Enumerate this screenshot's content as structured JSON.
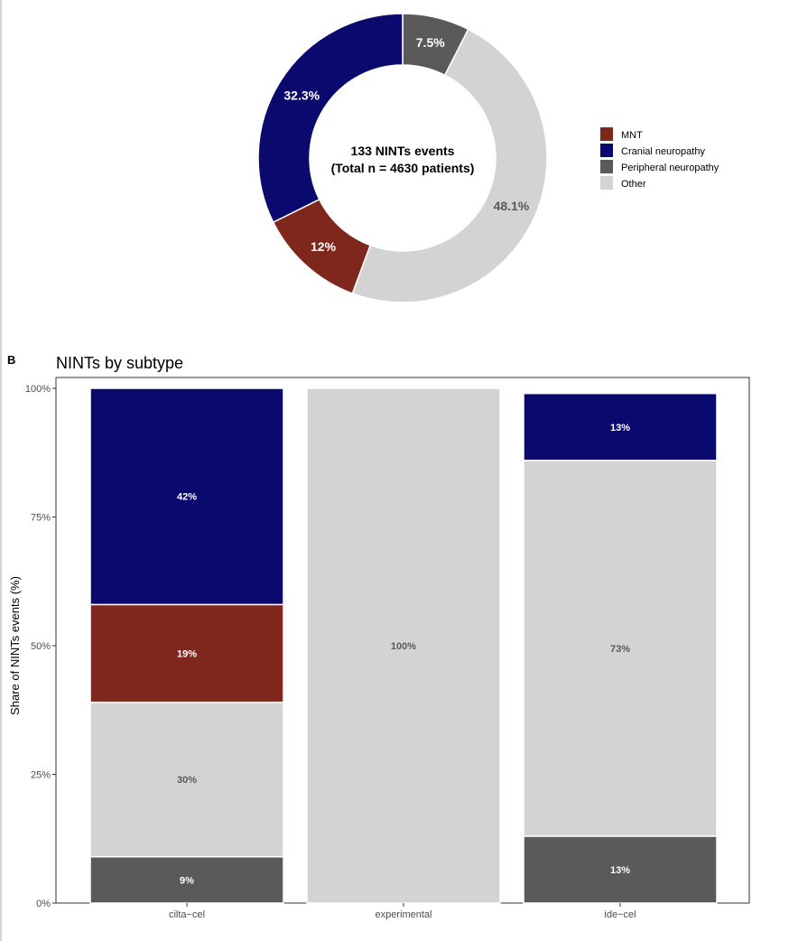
{
  "panel_b_letter": "B",
  "colors": {
    "MNT": "#7f271d",
    "Cranial neuropathy": "#0a0a6e",
    "Peripheral neuropathy": "#5a5a5a",
    "Other": "#d3d3d3"
  },
  "chart_data": [
    {
      "type": "pie",
      "donut": true,
      "center_text": [
        "133 NINTs events",
        "(Total n = 4630 patients)"
      ],
      "slices": [
        {
          "label": "Peripheral neuropathy",
          "value": 7.5,
          "text": "7.5%"
        },
        {
          "label": "Other",
          "value": 48.1,
          "text": "48.1%"
        },
        {
          "label": "MNT",
          "value": 12,
          "text": "12%"
        },
        {
          "label": "Cranial neuropathy",
          "value": 32.3,
          "text": "32.3%"
        }
      ],
      "legend": {
        "placement": "right",
        "entries": [
          "MNT",
          "Cranial neuropathy",
          "Peripheral neuropathy",
          "Other"
        ]
      }
    },
    {
      "type": "bar",
      "stacked": true,
      "title": "NINTs by subtype",
      "xlabel": "",
      "ylabel": "Share of NINTs events (%)",
      "ylim": [
        0,
        100
      ],
      "yticks": [
        "0%",
        "25%",
        "50%",
        "75%",
        "100%"
      ],
      "categories": [
        "cilta−cel",
        "experimental",
        "ide−cel"
      ],
      "series": [
        {
          "name": "Peripheral neuropathy",
          "values": [
            9,
            0,
            13
          ],
          "labels": [
            "9%",
            "",
            "13%"
          ]
        },
        {
          "name": "Other",
          "values": [
            30,
            100,
            73
          ],
          "labels": [
            "30%",
            "100%",
            "73%"
          ]
        },
        {
          "name": "MNT",
          "values": [
            19,
            0,
            0
          ],
          "labels": [
            "19%",
            "",
            ""
          ]
        },
        {
          "name": "Cranial neuropathy",
          "values": [
            42,
            0,
            13
          ],
          "labels": [
            "42%",
            "",
            "13%"
          ]
        }
      ]
    }
  ]
}
